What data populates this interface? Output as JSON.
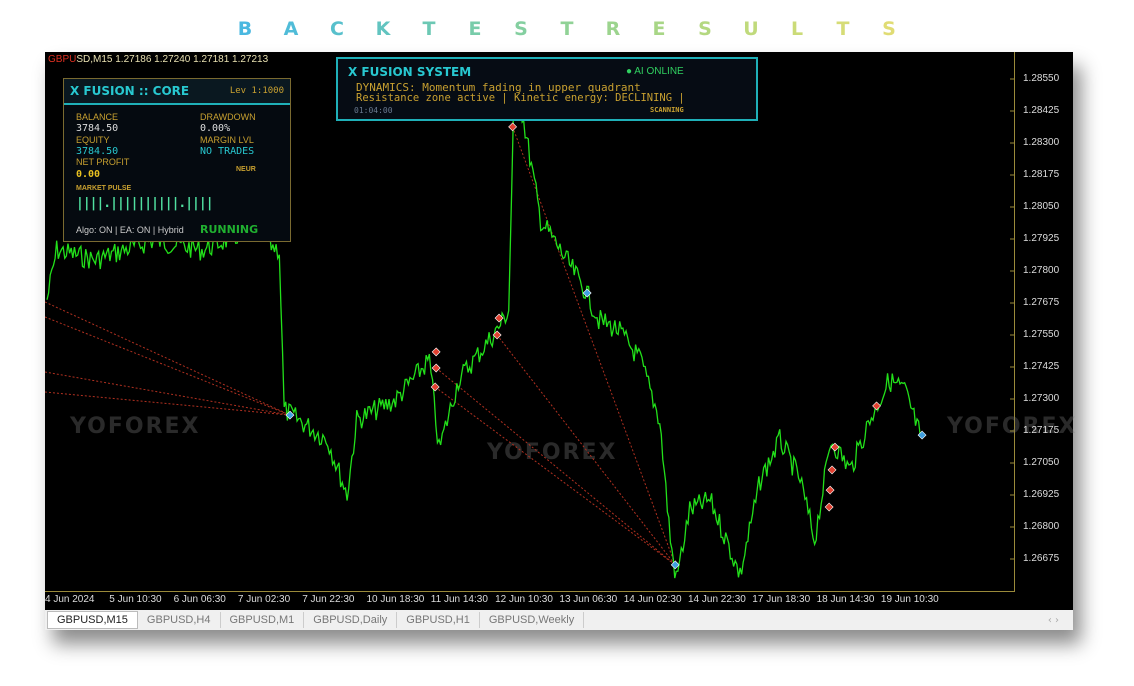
{
  "title": "BACKTESTRESULTS",
  "title_colors": [
    "#4ab8e0",
    "#50bcd8",
    "#58c0cc",
    "#62c4c0",
    "#6cc8b4",
    "#78ccaa",
    "#84cfa0",
    "#90d296",
    "#9cd48e",
    "#a8d686",
    "#b4d880",
    "#c0da7c",
    "#cbdb78",
    "#d6dc76",
    "#e0dc74"
  ],
  "chart": {
    "symbol_prefix": "GBPU",
    "symbol_rest": "SD,M15",
    "ohlc": "1.27186 1.27240 1.27181 1.27213",
    "price_ticks": [
      "1.28550",
      "1.28425",
      "1.28300",
      "1.28175",
      "1.28050",
      "1.27925",
      "1.27800",
      "1.27675",
      "1.27550",
      "1.27425",
      "1.27300",
      "1.27175",
      "1.27050",
      "1.26925",
      "1.26800",
      "1.26675"
    ],
    "time_ticks": [
      "4 Jun 2024",
      "5 Jun 10:30",
      "6 Jun 06:30",
      "7 Jun 02:30",
      "7 Jun 22:30",
      "10 Jun 18:30",
      "11 Jun 14:30",
      "12 Jun 10:30",
      "13 Jun 06:30",
      "14 Jun 02:30",
      "14 Jun 22:30",
      "17 Jun 18:30",
      "18 Jun 14:30",
      "19 Jun 10:30"
    ],
    "line_color": "#22e01a",
    "price_series": [
      [
        0,
        1.27687
      ],
      [
        1,
        1.27882
      ],
      [
        5,
        1.27843
      ],
      [
        11,
        1.27921
      ],
      [
        16,
        1.27882
      ],
      [
        21,
        1.2796
      ],
      [
        24,
        1.27882
      ],
      [
        24.5,
        1.27257
      ],
      [
        26,
        1.27218
      ],
      [
        29,
        1.2714
      ],
      [
        31,
        1.26925
      ],
      [
        32,
        1.27218
      ],
      [
        36,
        1.27296
      ],
      [
        39.5,
        1.27452
      ],
      [
        40.5,
        1.27101
      ],
      [
        42.5,
        1.27374
      ],
      [
        46.5,
        1.2757
      ],
      [
        47.7,
        1.27648
      ],
      [
        48.3,
        1.28585
      ],
      [
        49.4,
        1.28351
      ],
      [
        51,
        1.27999
      ],
      [
        53,
        1.27882
      ],
      [
        55.6,
        1.27726
      ],
      [
        57,
        1.27609
      ],
      [
        59,
        1.2757
      ],
      [
        61.3,
        1.27452
      ],
      [
        63.3,
        1.27218
      ],
      [
        64.4,
        1.26749
      ],
      [
        65,
        1.26593
      ],
      [
        66.4,
        1.26866
      ],
      [
        68.5,
        1.26905
      ],
      [
        70.6,
        1.2671
      ],
      [
        71.6,
        1.26612
      ],
      [
        73.7,
        1.26984
      ],
      [
        75.7,
        1.2714
      ],
      [
        77.8,
        1.26984
      ],
      [
        79.3,
        1.26749
      ],
      [
        81,
        1.2714
      ],
      [
        83,
        1.27023
      ],
      [
        85,
        1.27218
      ],
      [
        87,
        1.27374
      ],
      [
        88.6,
        1.27335
      ],
      [
        90.2,
        1.27159
      ]
    ],
    "signals": [
      {
        "bar": 48.1,
        "price": 1.28363,
        "type": "sell"
      },
      {
        "bar": 46.7,
        "price": 1.27616,
        "type": "sell"
      },
      {
        "bar": 46.5,
        "price": 1.2755,
        "type": "sell"
      },
      {
        "bar": 40.2,
        "price": 1.27484,
        "type": "sell"
      },
      {
        "bar": 40.2,
        "price": 1.27421,
        "type": "sell"
      },
      {
        "bar": 40.1,
        "price": 1.27347,
        "type": "sell"
      },
      {
        "bar": 81.4,
        "price": 1.27112,
        "type": "sell"
      },
      {
        "bar": 81.1,
        "price": 1.27023,
        "type": "sell"
      },
      {
        "bar": 80.9,
        "price": 1.26944,
        "type": "sell"
      },
      {
        "bar": 80.8,
        "price": 1.26878,
        "type": "sell"
      },
      {
        "bar": 85.7,
        "price": 1.27273,
        "type": "sell"
      },
      {
        "bar": 25.1,
        "price": 1.27237,
        "type": "buy"
      },
      {
        "bar": 55.8,
        "price": 1.27714,
        "type": "buy"
      },
      {
        "bar": 64.9,
        "price": 1.26652,
        "type": "buy"
      },
      {
        "bar": 90.4,
        "price": 1.27159,
        "type": "buy"
      }
    ],
    "watermark": "YOFOREX"
  },
  "core": {
    "title": "X FUSION :: CORE",
    "leverage": "Lev 1:1000",
    "balance_label": "BALANCE",
    "balance": "3784.50",
    "drawdown_label": "DRAWDOWN",
    "drawdown": "0.00%",
    "equity_label": "EQUITY",
    "equity": "3784.50",
    "margin_label": "MARGIN LVL",
    "margin": "NO TRADES",
    "net_label": "NET PROFIT",
    "net": "0.00",
    "neur": "NEUR",
    "pulse_label": "MARKET PULSE",
    "pulse_bars": "||||.||||||||||.||||",
    "algo": "Algo: ON | EA: ON | Hybrid",
    "status": "RUNNING"
  },
  "system": {
    "title": "X FUSION SYSTEM",
    "ai": "● AI ONLINE",
    "line1": "DYNAMICS: Momentum fading in upper quadrant",
    "line2": "Resistance zone active | Kinetic energy: DECLINING |",
    "time": "01:04:00",
    "scan": "SCANNING"
  },
  "tabs": [
    "GBPUSD,M15",
    "GBPUSD,H4",
    "GBPUSD,M1",
    "GBPUSD,Daily",
    "GBPUSD,H1",
    "GBPUSD,Weekly"
  ]
}
